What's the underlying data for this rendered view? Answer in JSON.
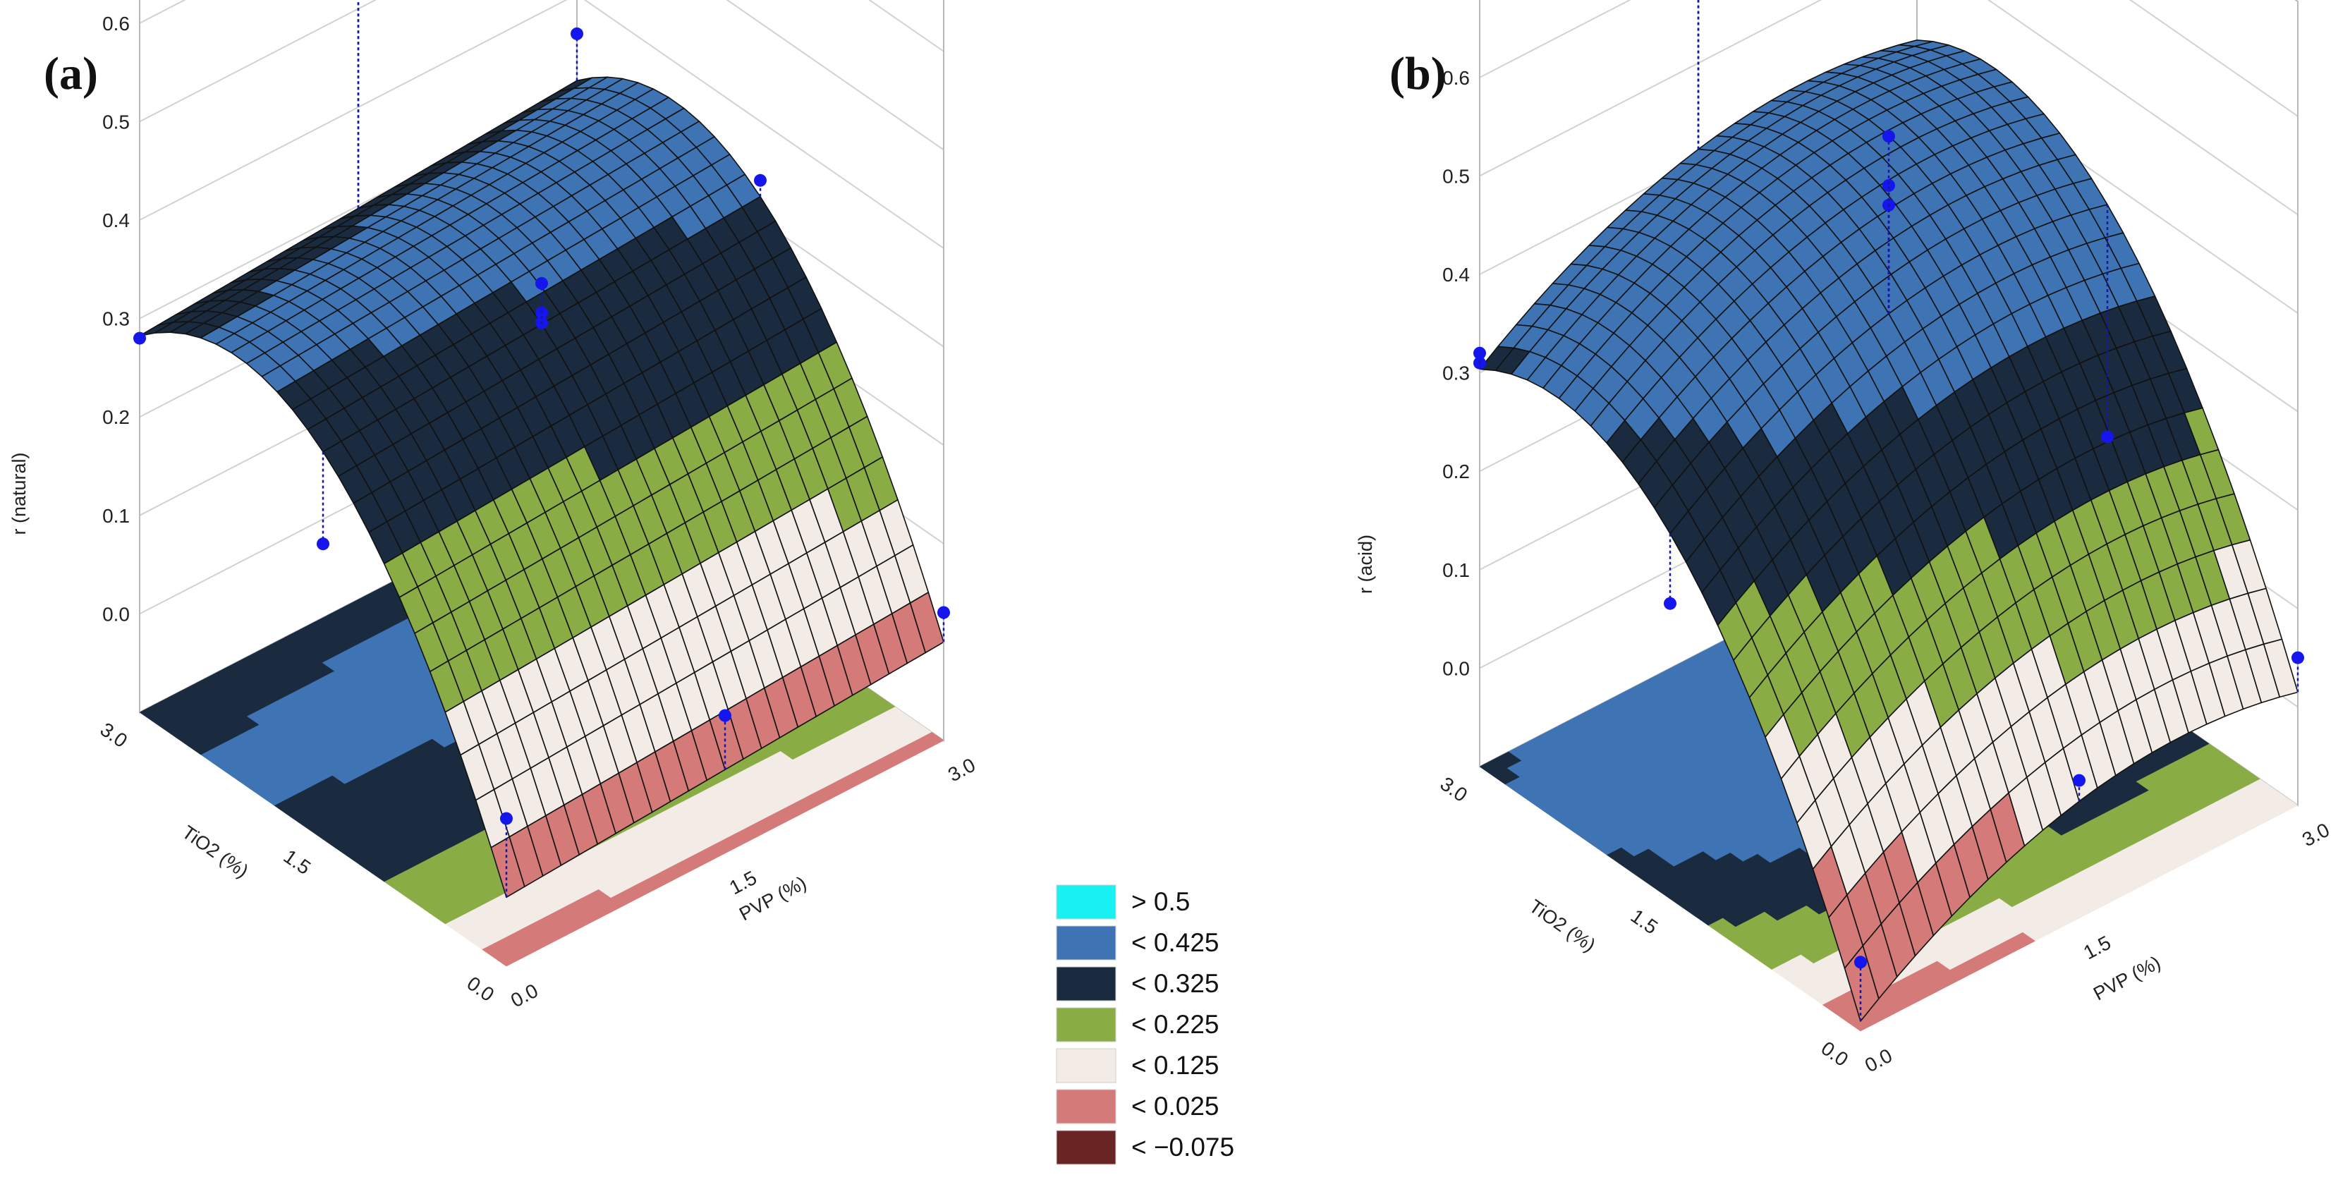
{
  "chart_data": [
    {
      "type": "surface3d",
      "panel_label": "(a)",
      "zlabel": "r (natural)",
      "xlabel": "PVP (%)",
      "ylabel": "TiO2 (%)",
      "x_ticks": [
        "0.0",
        "1.5",
        "3.0"
      ],
      "y_ticks": [
        "0.0",
        "1.5",
        "3.0"
      ],
      "z_ticks": [
        "0.0",
        "0.1",
        "0.2",
        "0.3",
        "0.4",
        "0.5",
        "0.6"
      ],
      "x_range": [
        0,
        3
      ],
      "y_range": [
        0,
        3
      ],
      "zlim": [
        -0.1,
        0.6
      ],
      "model": "r = 0.33 - 0.36*(t - 2.2)^2/(2.2)^2 + 0.01*p (t = TiO2 %, p = PVP %)",
      "points": [
        {
          "pvp": 0.0,
          "tio2": 0.0,
          "r": 0.05
        },
        {
          "pvp": 0.0,
          "tio2": 1.5,
          "r": 0.2
        },
        {
          "pvp": 0.0,
          "tio2": 3.0,
          "r": 0.28
        },
        {
          "pvp": 1.5,
          "tio2": 0.0,
          "r": 0.04
        },
        {
          "pvp": 1.5,
          "tio2": 1.5,
          "r": 0.31
        },
        {
          "pvp": 1.5,
          "tio2": 1.5,
          "r": 0.32
        },
        {
          "pvp": 1.5,
          "tio2": 1.5,
          "r": 0.35
        },
        {
          "pvp": 1.5,
          "tio2": 3.0,
          "r": 0.53
        },
        {
          "pvp": 1.5,
          "tio2": 3.0,
          "r": 0.55
        },
        {
          "pvp": 3.0,
          "tio2": 0.0,
          "r": 0.03
        },
        {
          "pvp": 3.0,
          "tio2": 1.5,
          "r": 0.34
        },
        {
          "pvp": 3.0,
          "tio2": 3.0,
          "r": 0.36
        }
      ]
    },
    {
      "type": "surface3d",
      "panel_label": "(b)",
      "zlabel": "r (acid)",
      "xlabel": "PVP (%)",
      "ylabel": "TiO2 (%)",
      "x_ticks": [
        "0.0",
        "1.5",
        "3.0"
      ],
      "y_ticks": [
        "0.0",
        "1.5",
        "3.0"
      ],
      "z_ticks": [
        "0.0",
        "0.1",
        "0.2",
        "0.3",
        "0.4",
        "0.5",
        "0.6"
      ],
      "x_range": [
        0,
        3
      ],
      "y_range": [
        0,
        3
      ],
      "zlim": [
        -0.1,
        0.6
      ],
      "model": "r = 0.33 - 0.42*(t - 2.4)^2/(2.4)^2 + 0.11*p - 0.025*p^2",
      "points": [
        {
          "pvp": 0.0,
          "tio2": 0.0,
          "r": -0.03
        },
        {
          "pvp": 0.0,
          "tio2": 1.5,
          "r": 0.2
        },
        {
          "pvp": 0.0,
          "tio2": 3.0,
          "r": 0.31
        },
        {
          "pvp": 0.0,
          "tio2": 3.0,
          "r": 0.32
        },
        {
          "pvp": 1.5,
          "tio2": 0.0,
          "r": 0.04
        },
        {
          "pvp": 1.5,
          "tio2": 1.5,
          "r": 0.49
        },
        {
          "pvp": 1.5,
          "tio2": 1.5,
          "r": 0.51
        },
        {
          "pvp": 1.5,
          "tio2": 1.5,
          "r": 0.56
        },
        {
          "pvp": 1.5,
          "tio2": 3.0,
          "r": 0.6
        },
        {
          "pvp": 1.5,
          "tio2": 3.0,
          "r": 0.61
        },
        {
          "pvp": 3.0,
          "tio2": 0.0,
          "r": 0.05
        },
        {
          "pvp": 3.0,
          "tio2": 1.5,
          "r": 0.14
        }
      ]
    }
  ],
  "legend": {
    "entries": [
      {
        "label": "> 0.5",
        "color": "#19f0f2",
        "min": 0.5
      },
      {
        "label": "< 0.425",
        "color": "#3f74b4",
        "min": 0.325
      },
      {
        "label": "< 0.325",
        "color": "#1a2b3f",
        "min": 0.225
      },
      {
        "label": "< 0.225",
        "color": "#8aac45",
        "min": 0.125
      },
      {
        "label": "< 0.125",
        "color": "#f2ebe6",
        "min": 0.025
      },
      {
        "label": "< 0.025",
        "color": "#d47a78",
        "min": -0.075
      },
      {
        "label": "< −0.075",
        "color": "#6b2424",
        "min": -99
      }
    ]
  },
  "colors": {
    "point": "#1515ee",
    "grid": "#111111",
    "box": "#b9b9b9"
  }
}
